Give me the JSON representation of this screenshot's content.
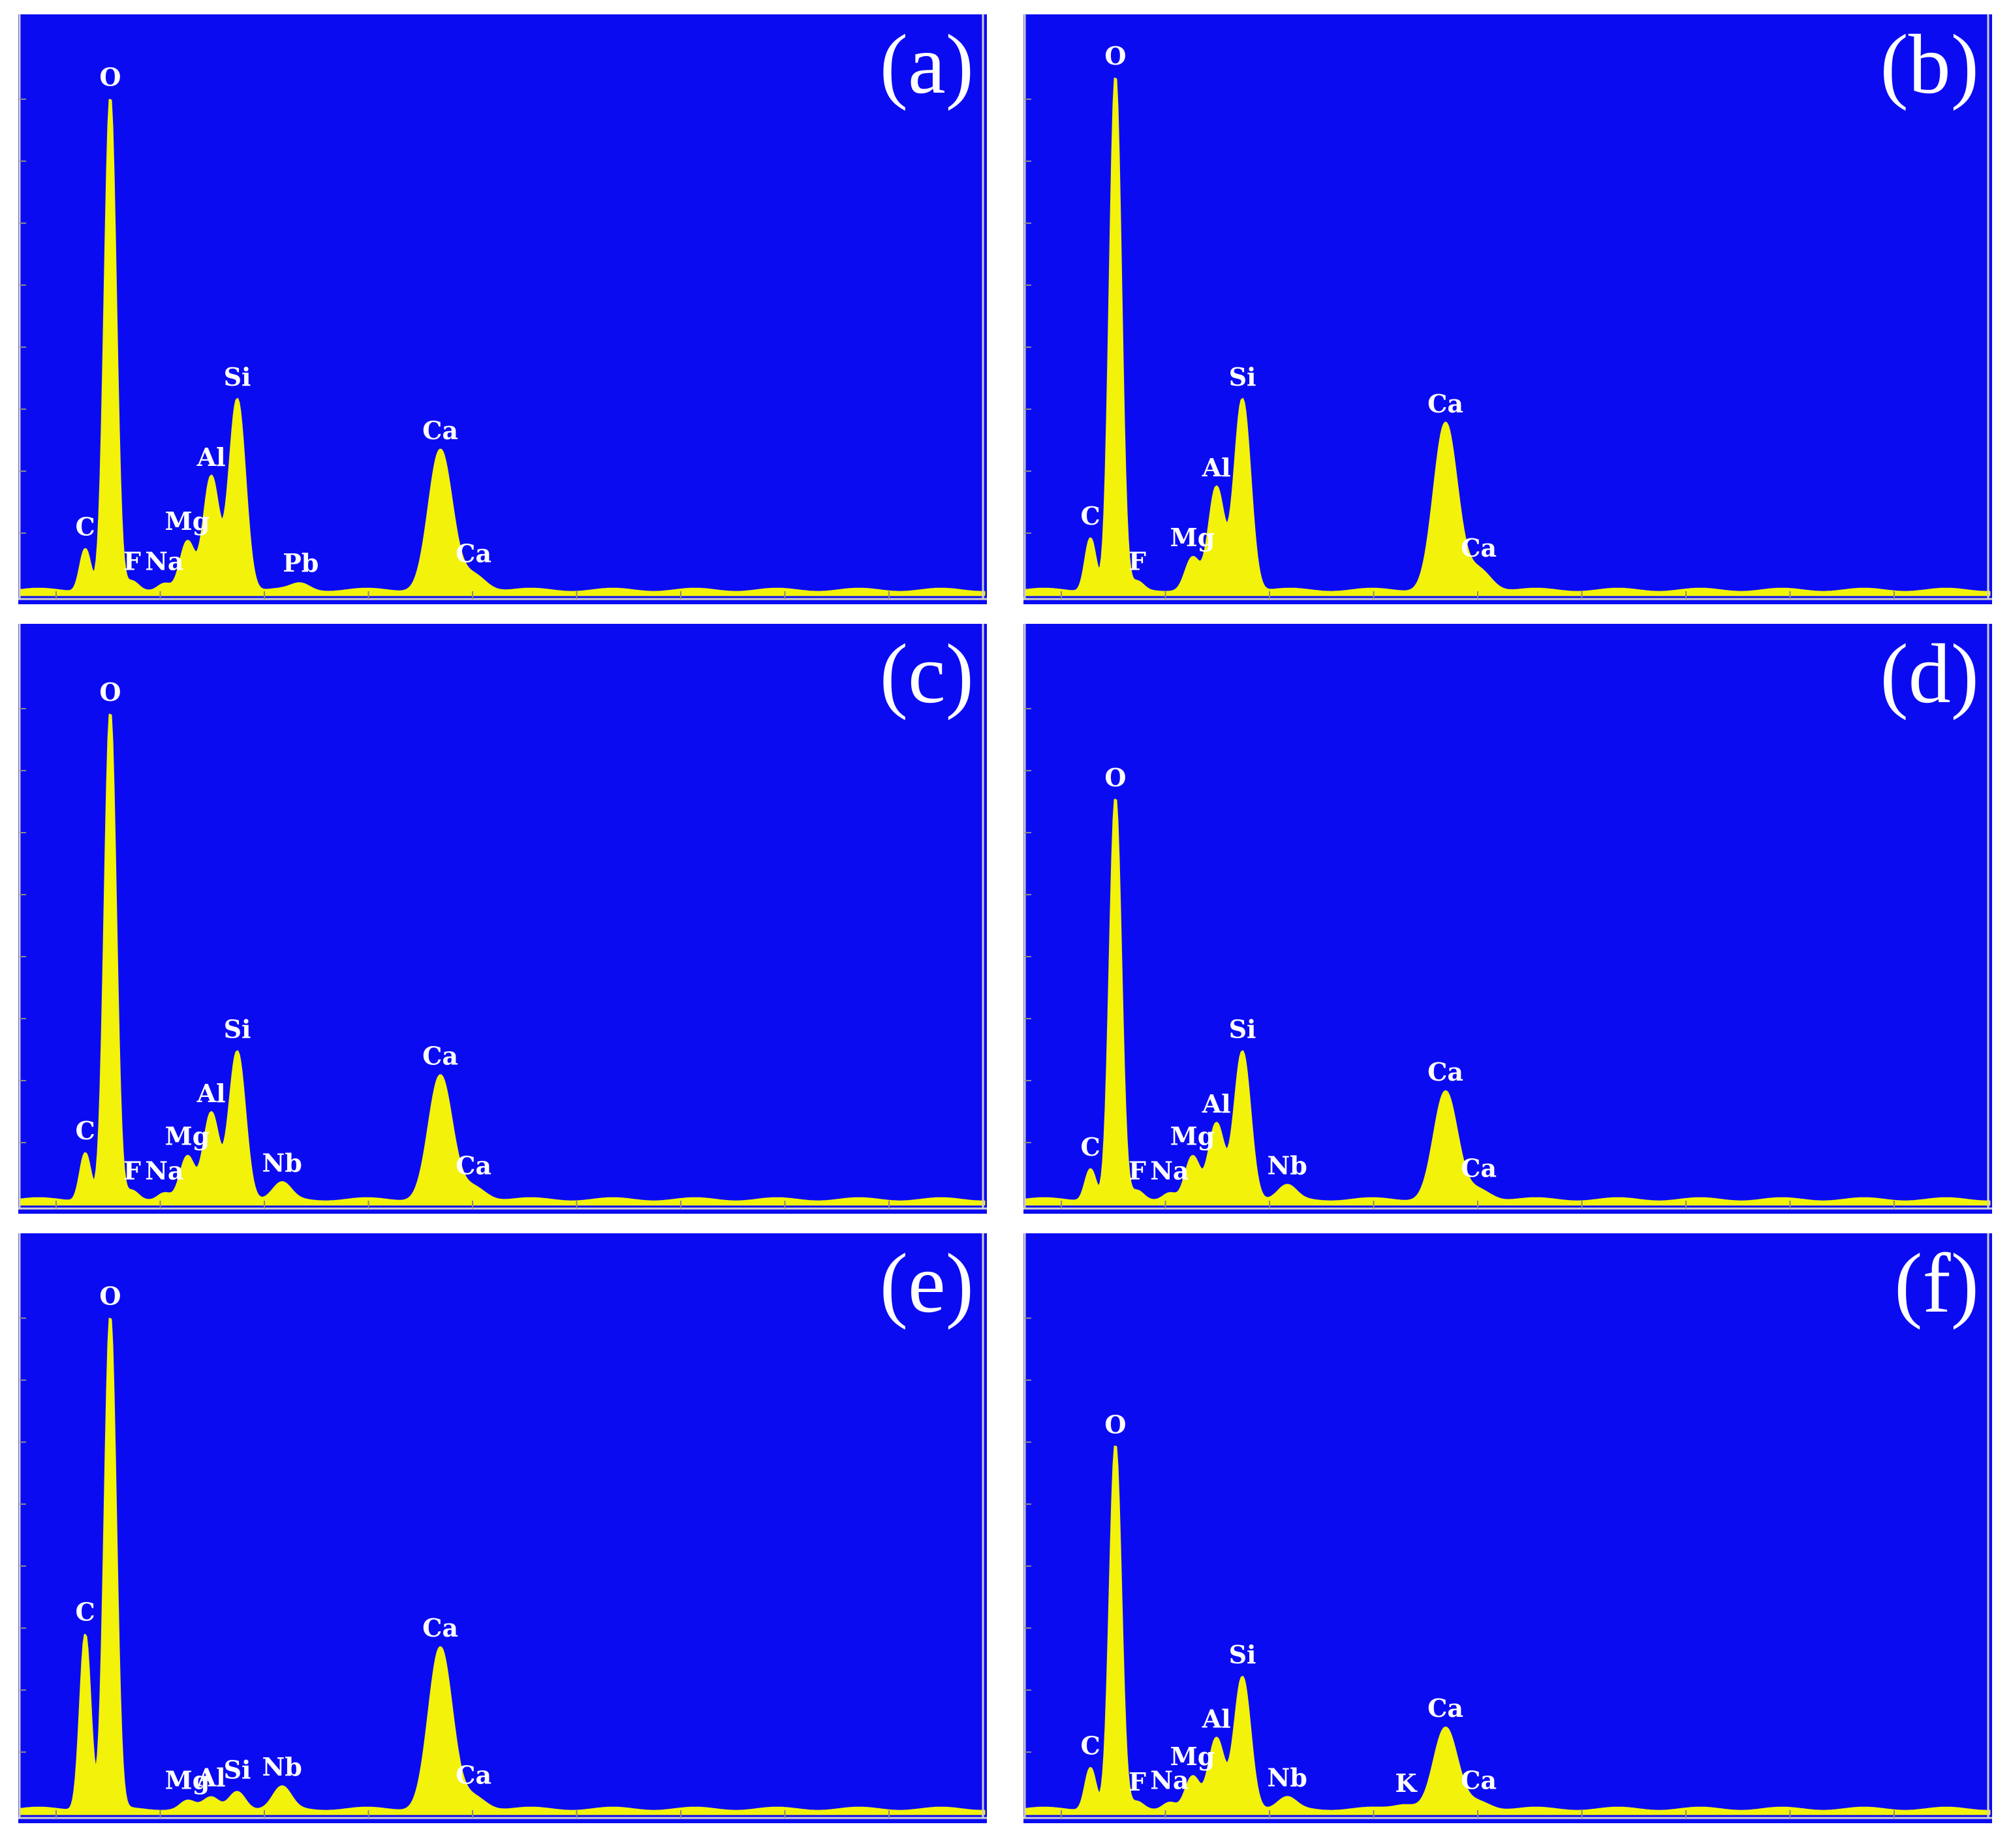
{
  "colors": {
    "background": "#0b0bf2",
    "spectrum": "#f2f20a",
    "labels": "#ffffff"
  },
  "chart_data": [
    {
      "type": "area",
      "panel_label": "(a)",
      "xlim": [
        0,
        10
      ],
      "ylim": [
        0,
        100
      ],
      "grid": false,
      "peaks": [
        {
          "element": "C",
          "x": 0.28,
          "y": 8
        },
        {
          "element": "O",
          "x": 0.52,
          "y": 92
        },
        {
          "element": "F",
          "x": 0.73,
          "y": 1.5
        },
        {
          "element": "Na",
          "x": 1.04,
          "y": 1.5
        },
        {
          "element": "Mg",
          "x": 1.26,
          "y": 9
        },
        {
          "element": "Al",
          "x": 1.49,
          "y": 21
        },
        {
          "element": "Si",
          "x": 1.74,
          "y": 36
        },
        {
          "element": "Pb",
          "x": 2.35,
          "y": 1.2
        },
        {
          "element": "Ca",
          "x": 3.69,
          "y": 26
        },
        {
          "element": "Ca",
          "x": 4.01,
          "y": 3
        }
      ]
    },
    {
      "type": "area",
      "panel_label": "(b)",
      "xlim": [
        0,
        10
      ],
      "ylim": [
        0,
        100
      ],
      "grid": false,
      "peaks": [
        {
          "element": "C",
          "x": 0.28,
          "y": 10
        },
        {
          "element": "O",
          "x": 0.52,
          "y": 96
        },
        {
          "element": "F",
          "x": 0.73,
          "y": 1.5
        },
        {
          "element": "Mg",
          "x": 1.26,
          "y": 6
        },
        {
          "element": "Al",
          "x": 1.49,
          "y": 19
        },
        {
          "element": "Si",
          "x": 1.74,
          "y": 36
        },
        {
          "element": "Ca",
          "x": 3.69,
          "y": 31
        },
        {
          "element": "Ca",
          "x": 4.01,
          "y": 4
        }
      ]
    },
    {
      "type": "area",
      "panel_label": "(c)",
      "xlim": [
        0,
        10
      ],
      "ylim": [
        0,
        100
      ],
      "grid": false,
      "peaks": [
        {
          "element": "C",
          "x": 0.28,
          "y": 9
        },
        {
          "element": "O",
          "x": 0.52,
          "y": 91
        },
        {
          "element": "F",
          "x": 0.73,
          "y": 1.5
        },
        {
          "element": "Na",
          "x": 1.04,
          "y": 1.5
        },
        {
          "element": "Mg",
          "x": 1.26,
          "y": 8
        },
        {
          "element": "Al",
          "x": 1.49,
          "y": 16
        },
        {
          "element": "Si",
          "x": 1.74,
          "y": 28
        },
        {
          "element": "Nb",
          "x": 2.17,
          "y": 3
        },
        {
          "element": "Ca",
          "x": 3.69,
          "y": 23
        },
        {
          "element": "Ca",
          "x": 4.01,
          "y": 2.5
        }
      ]
    },
    {
      "type": "area",
      "panel_label": "(d)",
      "xlim": [
        0,
        10
      ],
      "ylim": [
        0,
        100
      ],
      "grid": false,
      "peaks": [
        {
          "element": "C",
          "x": 0.28,
          "y": 6
        },
        {
          "element": "O",
          "x": 0.52,
          "y": 75
        },
        {
          "element": "F",
          "x": 0.73,
          "y": 1.5
        },
        {
          "element": "Na",
          "x": 1.04,
          "y": 1.5
        },
        {
          "element": "Mg",
          "x": 1.26,
          "y": 8
        },
        {
          "element": "Al",
          "x": 1.49,
          "y": 14
        },
        {
          "element": "Si",
          "x": 1.74,
          "y": 28
        },
        {
          "element": "Nb",
          "x": 2.17,
          "y": 2.5
        },
        {
          "element": "Ca",
          "x": 3.69,
          "y": 20
        },
        {
          "element": "Ca",
          "x": 4.01,
          "y": 2
        }
      ]
    },
    {
      "type": "area",
      "panel_label": "(e)",
      "xlim": [
        0,
        10
      ],
      "ylim": [
        0,
        100
      ],
      "grid": false,
      "peaks": [
        {
          "element": "C",
          "x": 0.28,
          "y": 33
        },
        {
          "element": "O",
          "x": 0.52,
          "y": 92
        },
        {
          "element": "Mg",
          "x": 1.26,
          "y": 1.5
        },
        {
          "element": "Al",
          "x": 1.49,
          "y": 2
        },
        {
          "element": "Si",
          "x": 1.74,
          "y": 3.5
        },
        {
          "element": "Nb",
          "x": 2.17,
          "y": 4
        },
        {
          "element": "Ca",
          "x": 3.69,
          "y": 30
        },
        {
          "element": "Ca",
          "x": 4.01,
          "y": 2.5
        }
      ]
    },
    {
      "type": "area",
      "panel_label": "(f)",
      "xlim": [
        0,
        10
      ],
      "ylim": [
        0,
        100
      ],
      "grid": false,
      "peaks": [
        {
          "element": "C",
          "x": 0.28,
          "y": 8
        },
        {
          "element": "O",
          "x": 0.52,
          "y": 68
        },
        {
          "element": "F",
          "x": 0.73,
          "y": 1.2
        },
        {
          "element": "Na",
          "x": 1.04,
          "y": 1.5
        },
        {
          "element": "Mg",
          "x": 1.26,
          "y": 6
        },
        {
          "element": "Al",
          "x": 1.49,
          "y": 13
        },
        {
          "element": "Si",
          "x": 1.74,
          "y": 25
        },
        {
          "element": "Nb",
          "x": 2.17,
          "y": 2
        },
        {
          "element": "K",
          "x": 3.31,
          "y": 1
        },
        {
          "element": "Ca",
          "x": 3.69,
          "y": 15
        },
        {
          "element": "Ca",
          "x": 4.01,
          "y": 1.5
        }
      ]
    }
  ]
}
